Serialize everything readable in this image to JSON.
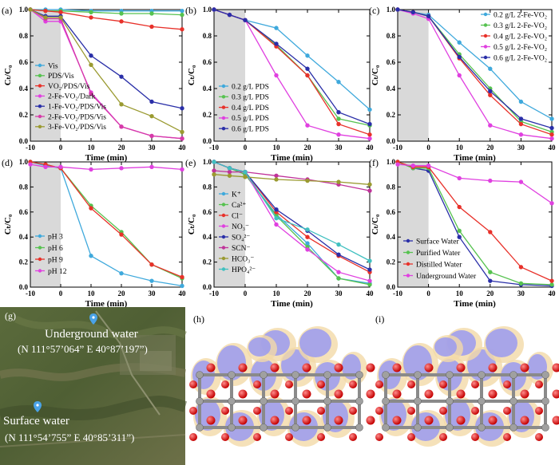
{
  "chart_data": [
    {
      "panel": "(a)",
      "type": "line",
      "xlabel": "Time (min)",
      "ylabel": "C_t/C_0",
      "xlim": [
        -10,
        40
      ],
      "ylim": [
        0,
        1.0
      ],
      "xticks": [
        "-10",
        "0",
        "10",
        "20",
        "30",
        "40"
      ],
      "yticks": [
        "0.0",
        "0.2",
        "0.4",
        "0.6",
        "0.8",
        "1.0"
      ],
      "dark_region": [
        -10,
        0
      ],
      "x": [
        -10,
        -5,
        0,
        10,
        20,
        30,
        40
      ],
      "series": [
        {
          "name": "Vis",
          "color": "#3fa9dc",
          "values": [
            1.0,
            1.0,
            1.0,
            0.99,
            0.99,
            0.99,
            0.99
          ]
        },
        {
          "name": "PDS/Vis",
          "color": "#56c24f",
          "values": [
            1.0,
            0.99,
            0.99,
            0.98,
            0.97,
            0.97,
            0.96
          ]
        },
        {
          "name": "VO2/PDS/Vis",
          "color": "#e8312a",
          "values": [
            1.0,
            0.99,
            0.98,
            0.94,
            0.91,
            0.87,
            0.85
          ]
        },
        {
          "name": "2-Fe-VO2/Dark",
          "color": "#e040e0",
          "values": [
            1.0,
            0.91,
            0.91,
            0.37,
            0.11,
            0.04,
            0.02
          ]
        },
        {
          "name": "1-Fe-VO2/PDS/Vis",
          "color": "#2a2fa8",
          "values": [
            1.0,
            0.95,
            0.95,
            0.65,
            0.49,
            0.3,
            0.25
          ]
        },
        {
          "name": "2-Fe-VO2/PDS/Vis",
          "color": "#d63aa8",
          "values": [
            1.0,
            0.93,
            0.93,
            0.36,
            0.11,
            0.04,
            0.02
          ]
        },
        {
          "name": "3-Fe-VO2/PDS/Vis",
          "color": "#9a9a30",
          "values": [
            1.0,
            0.94,
            0.94,
            0.58,
            0.28,
            0.19,
            0.07
          ]
        }
      ],
      "legend": "bottom-left"
    },
    {
      "panel": "(b)",
      "type": "line",
      "xlabel": "Time (min)",
      "ylabel": "C_t/C_0",
      "xlim": [
        -10,
        40
      ],
      "ylim": [
        0,
        1.0
      ],
      "xticks": [
        "-10",
        "0",
        "10",
        "20",
        "30",
        "40"
      ],
      "yticks": [
        "0.0",
        "0.2",
        "0.4",
        "0.6",
        "0.8",
        "1.0"
      ],
      "dark_region": [
        -10,
        0
      ],
      "x": [
        -10,
        -5,
        0,
        10,
        20,
        30,
        40
      ],
      "series": [
        {
          "name": "0.2 g/L PDS",
          "color": "#3fa9dc",
          "values": [
            1.0,
            0.96,
            0.92,
            0.86,
            0.65,
            0.45,
            0.24
          ]
        },
        {
          "name": "0.3 g/L PDS",
          "color": "#56c24f",
          "values": [
            1.0,
            0.96,
            0.92,
            0.73,
            0.5,
            0.17,
            0.12
          ]
        },
        {
          "name": "0.4 g/L PDS",
          "color": "#e8312a",
          "values": [
            1.0,
            0.96,
            0.92,
            0.72,
            0.5,
            0.13,
            0.05
          ]
        },
        {
          "name": "0.5 g/L PDS",
          "color": "#e040e0",
          "values": [
            1.0,
            0.96,
            0.92,
            0.5,
            0.12,
            0.05,
            0.02
          ]
        },
        {
          "name": "0.6 g/L PDS",
          "color": "#2a2fa8",
          "values": [
            1.0,
            0.96,
            0.92,
            0.74,
            0.55,
            0.22,
            0.13
          ]
        }
      ],
      "legend": "bottom-left"
    },
    {
      "panel": "(c)",
      "type": "line",
      "xlabel": "Time (min)",
      "ylabel": "C_t/C_0",
      "xlim": [
        -10,
        40
      ],
      "ylim": [
        0,
        1.0
      ],
      "xticks": [
        "-10",
        "0",
        "10",
        "20",
        "30",
        "40"
      ],
      "yticks": [
        "0.0",
        "0.2",
        "0.4",
        "0.6",
        "0.8",
        "1.0"
      ],
      "dark_region": [
        -10,
        0
      ],
      "x": [
        -10,
        -5,
        0,
        10,
        20,
        30,
        40
      ],
      "series": [
        {
          "name": "0.2 g/L 2-Fe-VO2",
          "color": "#3fa9dc",
          "values": [
            1.0,
            0.98,
            0.96,
            0.75,
            0.55,
            0.3,
            0.17
          ]
        },
        {
          "name": "0.3 g/L 2-Fe-VO2",
          "color": "#56c24f",
          "values": [
            1.0,
            0.98,
            0.95,
            0.66,
            0.4,
            0.15,
            0.07
          ]
        },
        {
          "name": "0.4 g/L 2-Fe-VO2",
          "color": "#e8312a",
          "values": [
            1.0,
            0.98,
            0.95,
            0.63,
            0.35,
            0.13,
            0.05
          ]
        },
        {
          "name": "0.5 g/L 2-Fe-VO2",
          "color": "#e040e0",
          "values": [
            1.0,
            0.97,
            0.93,
            0.5,
            0.12,
            0.05,
            0.02
          ]
        },
        {
          "name": "0.6 g/L 2-Fe-VO2",
          "color": "#2a2fa8",
          "values": [
            1.0,
            0.98,
            0.95,
            0.64,
            0.38,
            0.17,
            0.1
          ]
        }
      ],
      "legend": "top-right"
    },
    {
      "panel": "(d)",
      "type": "line",
      "xlabel": "Time (min)",
      "ylabel": "C_t/C_0",
      "xlim": [
        -10,
        40
      ],
      "ylim": [
        0,
        1.0
      ],
      "xticks": [
        "-10",
        "0",
        "10",
        "20",
        "30",
        "40"
      ],
      "yticks": [
        "0.0",
        "0.2",
        "0.4",
        "0.6",
        "0.8",
        "1.0"
      ],
      "dark_region": [
        -10,
        0
      ],
      "x": [
        -10,
        -5,
        0,
        10,
        20,
        30,
        40
      ],
      "series": [
        {
          "name": "pH 3",
          "color": "#3fa9dc",
          "values": [
            1.0,
            0.97,
            0.95,
            0.25,
            0.11,
            0.05,
            0.01
          ]
        },
        {
          "name": "pH 6",
          "color": "#56c24f",
          "values": [
            1.0,
            0.98,
            0.95,
            0.65,
            0.44,
            0.18,
            0.07
          ]
        },
        {
          "name": "pH 9",
          "color": "#e8312a",
          "values": [
            1.0,
            0.98,
            0.95,
            0.63,
            0.42,
            0.18,
            0.08
          ]
        },
        {
          "name": "pH 12",
          "color": "#e040e0",
          "values": [
            0.98,
            0.96,
            0.96,
            0.94,
            0.95,
            0.96,
            0.94
          ]
        }
      ],
      "legend": "bottom-left"
    },
    {
      "panel": "(e)",
      "type": "line",
      "xlabel": "Time (min)",
      "ylabel": "C_t/C_0",
      "xlim": [
        -10,
        40
      ],
      "ylim": [
        0,
        1.0
      ],
      "xticks": [
        "-10",
        "0",
        "10",
        "20",
        "30",
        "40"
      ],
      "yticks": [
        "0.0",
        "0.2",
        "0.4",
        "0.6",
        "0.8",
        "1.0"
      ],
      "dark_region": [
        -10,
        0
      ],
      "x": [
        -10,
        -5,
        0,
        10,
        20,
        30,
        40
      ],
      "series": [
        {
          "name": "K+",
          "color": "#3fa9dc",
          "values": [
            1.0,
            0.95,
            0.9,
            0.58,
            0.35,
            0.07,
            0.03
          ]
        },
        {
          "name": "Ca2+",
          "color": "#56c24f",
          "values": [
            1.0,
            0.95,
            0.9,
            0.57,
            0.32,
            0.07,
            0.02
          ]
        },
        {
          "name": "Cl-",
          "color": "#e8312a",
          "values": [
            1.0,
            0.95,
            0.92,
            0.6,
            0.4,
            0.25,
            0.12
          ]
        },
        {
          "name": "NO3-",
          "color": "#e040e0",
          "values": [
            1.0,
            0.95,
            0.92,
            0.5,
            0.3,
            0.12,
            0.05
          ]
        },
        {
          "name": "SO42-",
          "color": "#2a2fa8",
          "values": [
            1.0,
            0.95,
            0.92,
            0.62,
            0.45,
            0.26,
            0.14
          ]
        },
        {
          "name": "SCN-",
          "color": "#c0329a",
          "values": [
            0.93,
            0.92,
            0.92,
            0.89,
            0.86,
            0.82,
            0.77
          ]
        },
        {
          "name": "HCO3-",
          "color": "#9a9a30",
          "values": [
            0.9,
            0.89,
            0.88,
            0.86,
            0.85,
            0.84,
            0.82
          ]
        },
        {
          "name": "HPO42-",
          "color": "#40c0c0",
          "values": [
            1.0,
            0.95,
            0.92,
            0.55,
            0.46,
            0.34,
            0.21
          ]
        }
      ],
      "legend": "bottom-left"
    },
    {
      "panel": "(f)",
      "type": "line",
      "xlabel": "Time (min)",
      "ylabel": "C_t/C_0",
      "xlim": [
        -10,
        40
      ],
      "ylim": [
        0,
        1.0
      ],
      "xticks": [
        "-10",
        "0",
        "10",
        "20",
        "30",
        "40"
      ],
      "yticks": [
        "0.0",
        "0.2",
        "0.4",
        "0.6",
        "0.8",
        "1.0"
      ],
      "dark_region": [
        -10,
        0
      ],
      "x": [
        -10,
        -5,
        0,
        10,
        20,
        30,
        40
      ],
      "series": [
        {
          "name": "Surface Water",
          "color": "#2a2fa8",
          "values": [
            1.0,
            0.95,
            0.93,
            0.4,
            0.05,
            0.02,
            0.01
          ]
        },
        {
          "name": "Purified Water",
          "color": "#56c24f",
          "values": [
            1.0,
            0.95,
            0.95,
            0.45,
            0.12,
            0.03,
            0.02
          ]
        },
        {
          "name": "Distilled Water",
          "color": "#e8312a",
          "values": [
            1.0,
            0.96,
            0.96,
            0.64,
            0.44,
            0.16,
            0.05
          ]
        },
        {
          "name": "Underground Water",
          "color": "#e040e0",
          "values": [
            0.98,
            0.97,
            0.97,
            0.87,
            0.85,
            0.84,
            0.67
          ]
        }
      ],
      "legend": "bottom-left"
    }
  ],
  "legend_display": [
    [
      "Vis",
      "PDS/Vis",
      "VO₂/PDS/Vis",
      "2-Fe-VO₂/Dark",
      "1-Fe-VO₂/PDS/Vis",
      "2-Fe-VO₂/PDS/Vis",
      "3-Fe-VO₂/PDS/Vis"
    ],
    [
      "0.2 g/L PDS",
      "0.3 g/L PDS",
      "0.4 g/L PDS",
      "0.5 g/L PDS",
      "0.6 g/L PDS"
    ],
    [
      "0.2 g/L 2-Fe-VO₂",
      "0.3 g/L 2-Fe-VO₂",
      "0.4 g/L 2-Fe-VO₂",
      "0.5 g/L 2-Fe-VO₂",
      "0.6 g/L 2-Fe-VO₂"
    ],
    [
      "pH 3",
      "pH 6",
      "pH 9",
      "pH 12"
    ],
    [
      "K⁺",
      "Ca²⁺",
      "Cl⁻",
      "NO₃⁻",
      "SO₄²⁻",
      "SCN⁻",
      "HCO₃⁻",
      "HPO₄²⁻"
    ],
    [
      "Surface Water",
      "Purified Water",
      "Distilled Water",
      "Underground Water"
    ]
  ],
  "ylabel_display": "Cₜ/C₀",
  "map_panel": {
    "label": "(g)",
    "points": [
      {
        "name": "Underground water",
        "coords": "(N 111°57’064” E 40°87’197”)"
      },
      {
        "name": "Surface water",
        "coords": "(N 111°54’755” E 40°85’311”)"
      }
    ],
    "colors": {
      "pin": "#4aa3e8",
      "label": "#ffffff"
    }
  },
  "structure_panels": [
    {
      "label": "(h)"
    },
    {
      "label": "(i)"
    }
  ]
}
